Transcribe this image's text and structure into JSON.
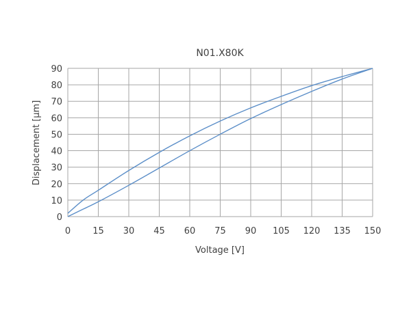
{
  "chart_data": {
    "type": "line",
    "title": "N01.X80K",
    "xlabel": "Voltage [V]",
    "ylabel": "Displacement [µm]",
    "xlim": [
      0,
      150
    ],
    "ylim": [
      0,
      90
    ],
    "xticks": [
      0,
      15,
      30,
      45,
      60,
      75,
      90,
      105,
      120,
      135,
      150
    ],
    "yticks": [
      0,
      10,
      20,
      30,
      40,
      50,
      60,
      70,
      80,
      90
    ],
    "grid": true,
    "legend": "none",
    "line_color": "#5b8ec8",
    "series": [
      {
        "x": [
          0,
          7.5,
          15,
          30,
          45,
          60,
          75,
          90,
          105,
          120,
          135,
          150
        ],
        "y": [
          2,
          10,
          16,
          28,
          39,
          49,
          58,
          66,
          73,
          79.5,
          85,
          90
        ]
      },
      {
        "x": [
          0,
          7.5,
          15,
          30,
          45,
          60,
          75,
          90,
          105,
          120,
          135,
          150
        ],
        "y": [
          0,
          4.5,
          9,
          19,
          29.5,
          40,
          50,
          59.5,
          68,
          76,
          83.5,
          90
        ]
      }
    ]
  }
}
